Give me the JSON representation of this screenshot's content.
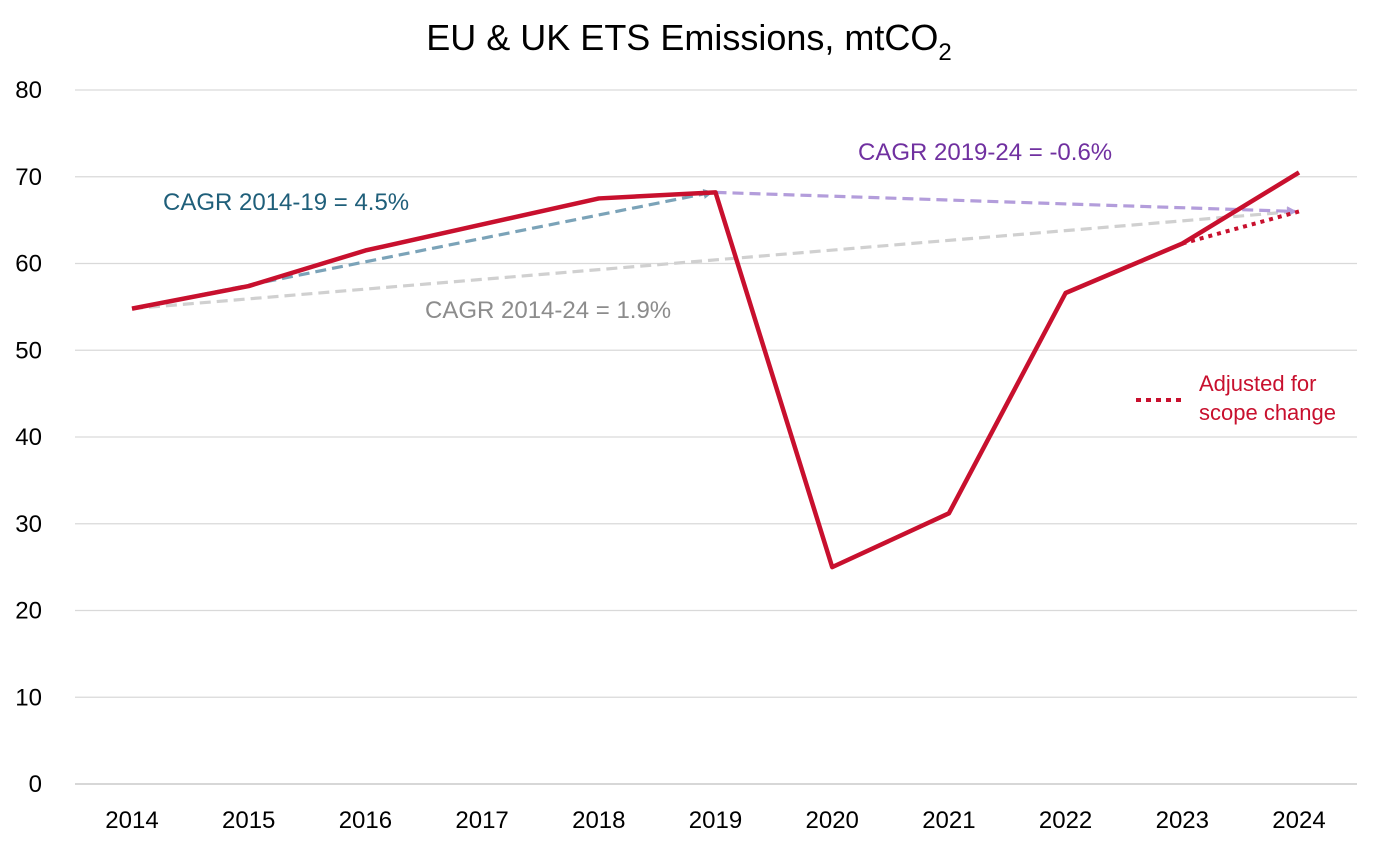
{
  "chart_data": {
    "type": "line",
    "title": "EU & UK ETS Emissions, mtCO",
    "title_subscript": "2",
    "xlabel": "",
    "ylabel": "",
    "ylim": [
      0,
      80
    ],
    "yticks": [
      0,
      10,
      20,
      30,
      40,
      50,
      60,
      70,
      80
    ],
    "grid": true,
    "categories": [
      "2014",
      "2015",
      "2016",
      "2017",
      "2018",
      "2019",
      "2020",
      "2021",
      "2022",
      "2023",
      "2024"
    ],
    "series": [
      {
        "name": "Emissions",
        "color": "#c8102e",
        "values": [
          54.8,
          57.4,
          61.5,
          64.5,
          67.5,
          68.2,
          25.0,
          31.2,
          56.6,
          62.3,
          70.5
        ]
      },
      {
        "name": "Adjusted for scope change",
        "color": "#c8102e",
        "style": "dotted",
        "points": [
          [
            "2023",
            62.3
          ],
          [
            "2024",
            66.0
          ]
        ]
      }
    ],
    "trend_lines": [
      {
        "label": "CAGR 2014-19 = 4.5%",
        "color": "#7ba3b8",
        "label_color": "#1f5f7a",
        "from": [
          "2014",
          54.8
        ],
        "to": [
          "2019",
          68.2
        ]
      },
      {
        "label": "CAGR 2019-24 = -0.6%",
        "color": "#b39ddb",
        "label_color": "#7030a0",
        "from": [
          "2019",
          68.2
        ],
        "to": [
          "2024",
          66.0
        ]
      },
      {
        "label": "CAGR 2014-24 = 1.9%",
        "color": "#d0d0d0",
        "label_color": "#8c8c8c",
        "from": [
          "2014",
          54.8
        ],
        "to": [
          "2024",
          66.0
        ]
      }
    ],
    "legend": {
      "position": "right",
      "entries": [
        {
          "line1": "Adjusted for",
          "line2": "scope change",
          "color": "#c8102e",
          "style": "dotted"
        }
      ]
    }
  }
}
